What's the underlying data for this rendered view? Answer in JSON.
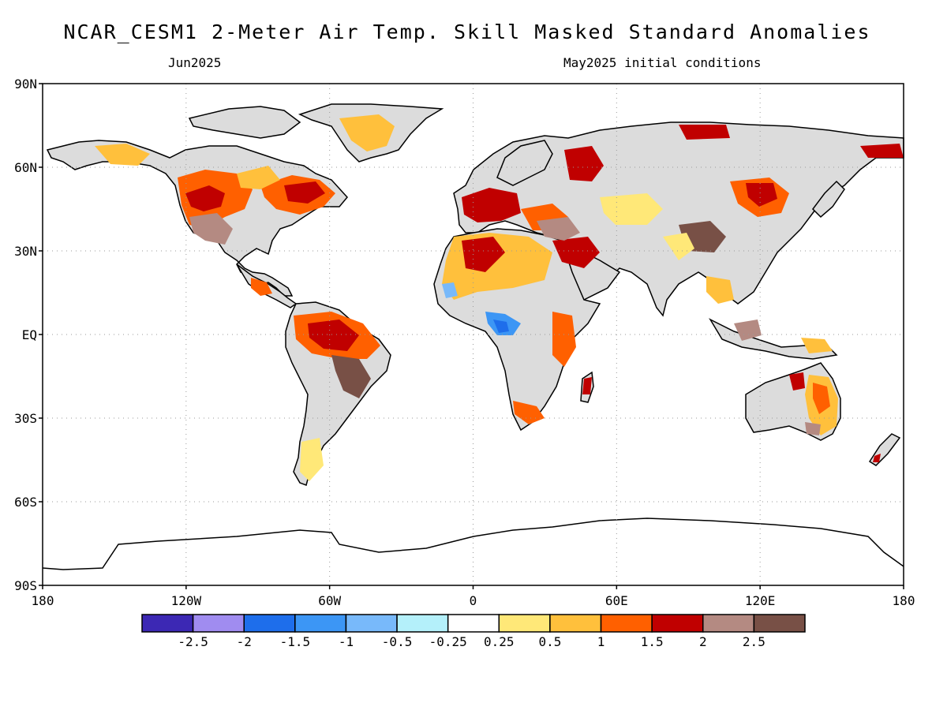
{
  "header": {
    "title": "NCAR_CESM1 2-Meter Air Temp. Skill Masked Standard Anomalies",
    "valid_month": "Jun2025",
    "init_text": "May2025 initial conditions"
  },
  "map": {
    "lat_labels": [
      "90N",
      "60N",
      "30N",
      "EQ",
      "30S",
      "60S",
      "90S"
    ],
    "lon_labels": [
      "180",
      "120W",
      "60W",
      "0",
      "60E",
      "120E",
      "180"
    ],
    "land_mask_color": "#dcdcdc",
    "ocean_color": "#ffffff",
    "anomaly_regions": [
      {
        "region": "Western North America",
        "class": "1.5 to 2"
      },
      {
        "region": "Eastern Canada",
        "class": "1.5 to 2"
      },
      {
        "region": "Southwestern US",
        "class": "2 to 2.5"
      },
      {
        "region": "Western Europe",
        "class": "1.5 to 2"
      },
      {
        "region": "Northwest Africa",
        "class": "1 to 1.5"
      },
      {
        "region": "Gulf of Guinea coast",
        "class": "-1.5 to -1"
      },
      {
        "region": "Brazil",
        "class": "1.5 to 2"
      },
      {
        "region": "Central Asia",
        "class": "2 to 2.5"
      },
      {
        "region": "Eastern Australia",
        "class": "1 to 1.5"
      }
    ]
  },
  "legend": {
    "labels": [
      "-2.5",
      "-2",
      "-1.5",
      "-1",
      "-0.5",
      "-0.25",
      "0.25",
      "0.5",
      "1",
      "1.5",
      "2",
      "2.5"
    ],
    "colors": [
      "#3c28b4",
      "#a08cf0",
      "#1e6eeb",
      "#3c96f5",
      "#78b9fa",
      "#b4f0fa",
      "#ffffff",
      "#ffe878",
      "#ffc03c",
      "#ff6000",
      "#c00000",
      "#b48a82",
      "#785046"
    ]
  }
}
